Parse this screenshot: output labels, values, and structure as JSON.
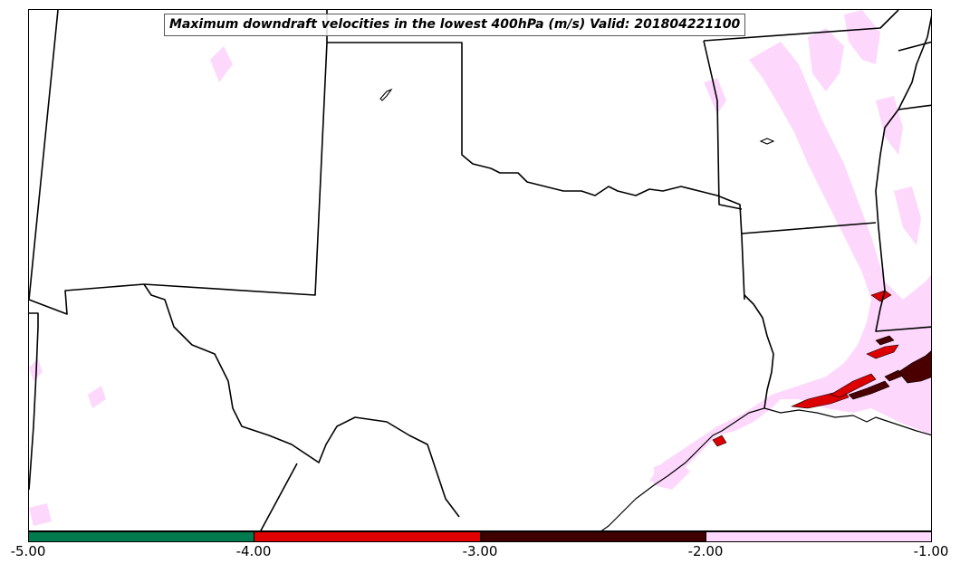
{
  "title": "Maximum downdraft velocities in the lowest 400hPa (m/s) Valid: 201804221100",
  "colorbar": {
    "colors": [
      "#007a4f",
      "#e00000",
      "#3f0000",
      "#ffd8ff"
    ],
    "ticks": [
      "-5.00",
      "-4.00",
      "-3.00",
      "-2.00",
      "-1.00"
    ]
  },
  "map": {
    "boundary_color": "#000000",
    "shade_levels": {
      "light": "#fdd8fc",
      "red": "#dd0000",
      "dark": "#4a0000"
    }
  }
}
